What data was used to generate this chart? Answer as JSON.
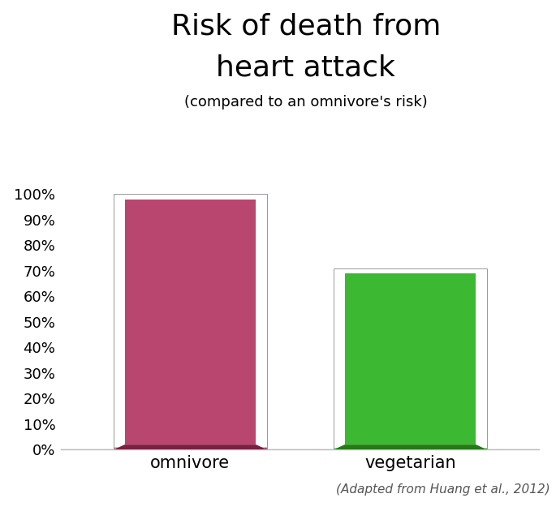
{
  "categories": [
    "omnivore",
    "vegetarian"
  ],
  "values": [
    100,
    71
  ],
  "bar_colors_main": [
    "#b8466e",
    "#3cb832"
  ],
  "bar_colors_light": [
    "#d4758e",
    "#6fd46a"
  ],
  "bar_colors_dark": [
    "#7a2040",
    "#257a15"
  ],
  "title_line1": "Risk of death from",
  "title_line2": "heart attack",
  "subtitle": "(compared to an omnivore's risk)",
  "citation": "(Adapted from Huang et al., 2012)",
  "background_color": "#ffffff",
  "ylim": [
    0,
    110
  ],
  "ytick_vals": [
    0,
    10,
    20,
    30,
    40,
    50,
    60,
    70,
    80,
    90,
    100
  ],
  "ytick_labels": [
    "0%",
    "10%",
    "20%",
    "30%",
    "40%",
    "50%",
    "60%",
    "70%",
    "80%",
    "90%",
    "100%"
  ],
  "title_fontsize": 26,
  "subtitle_fontsize": 13,
  "tick_label_fontsize": 13,
  "category_label_fontsize": 15,
  "citation_fontsize": 11,
  "bar_positions": [
    0.27,
    0.73
  ],
  "bar_width": 0.32,
  "bevel_size": 0.018
}
